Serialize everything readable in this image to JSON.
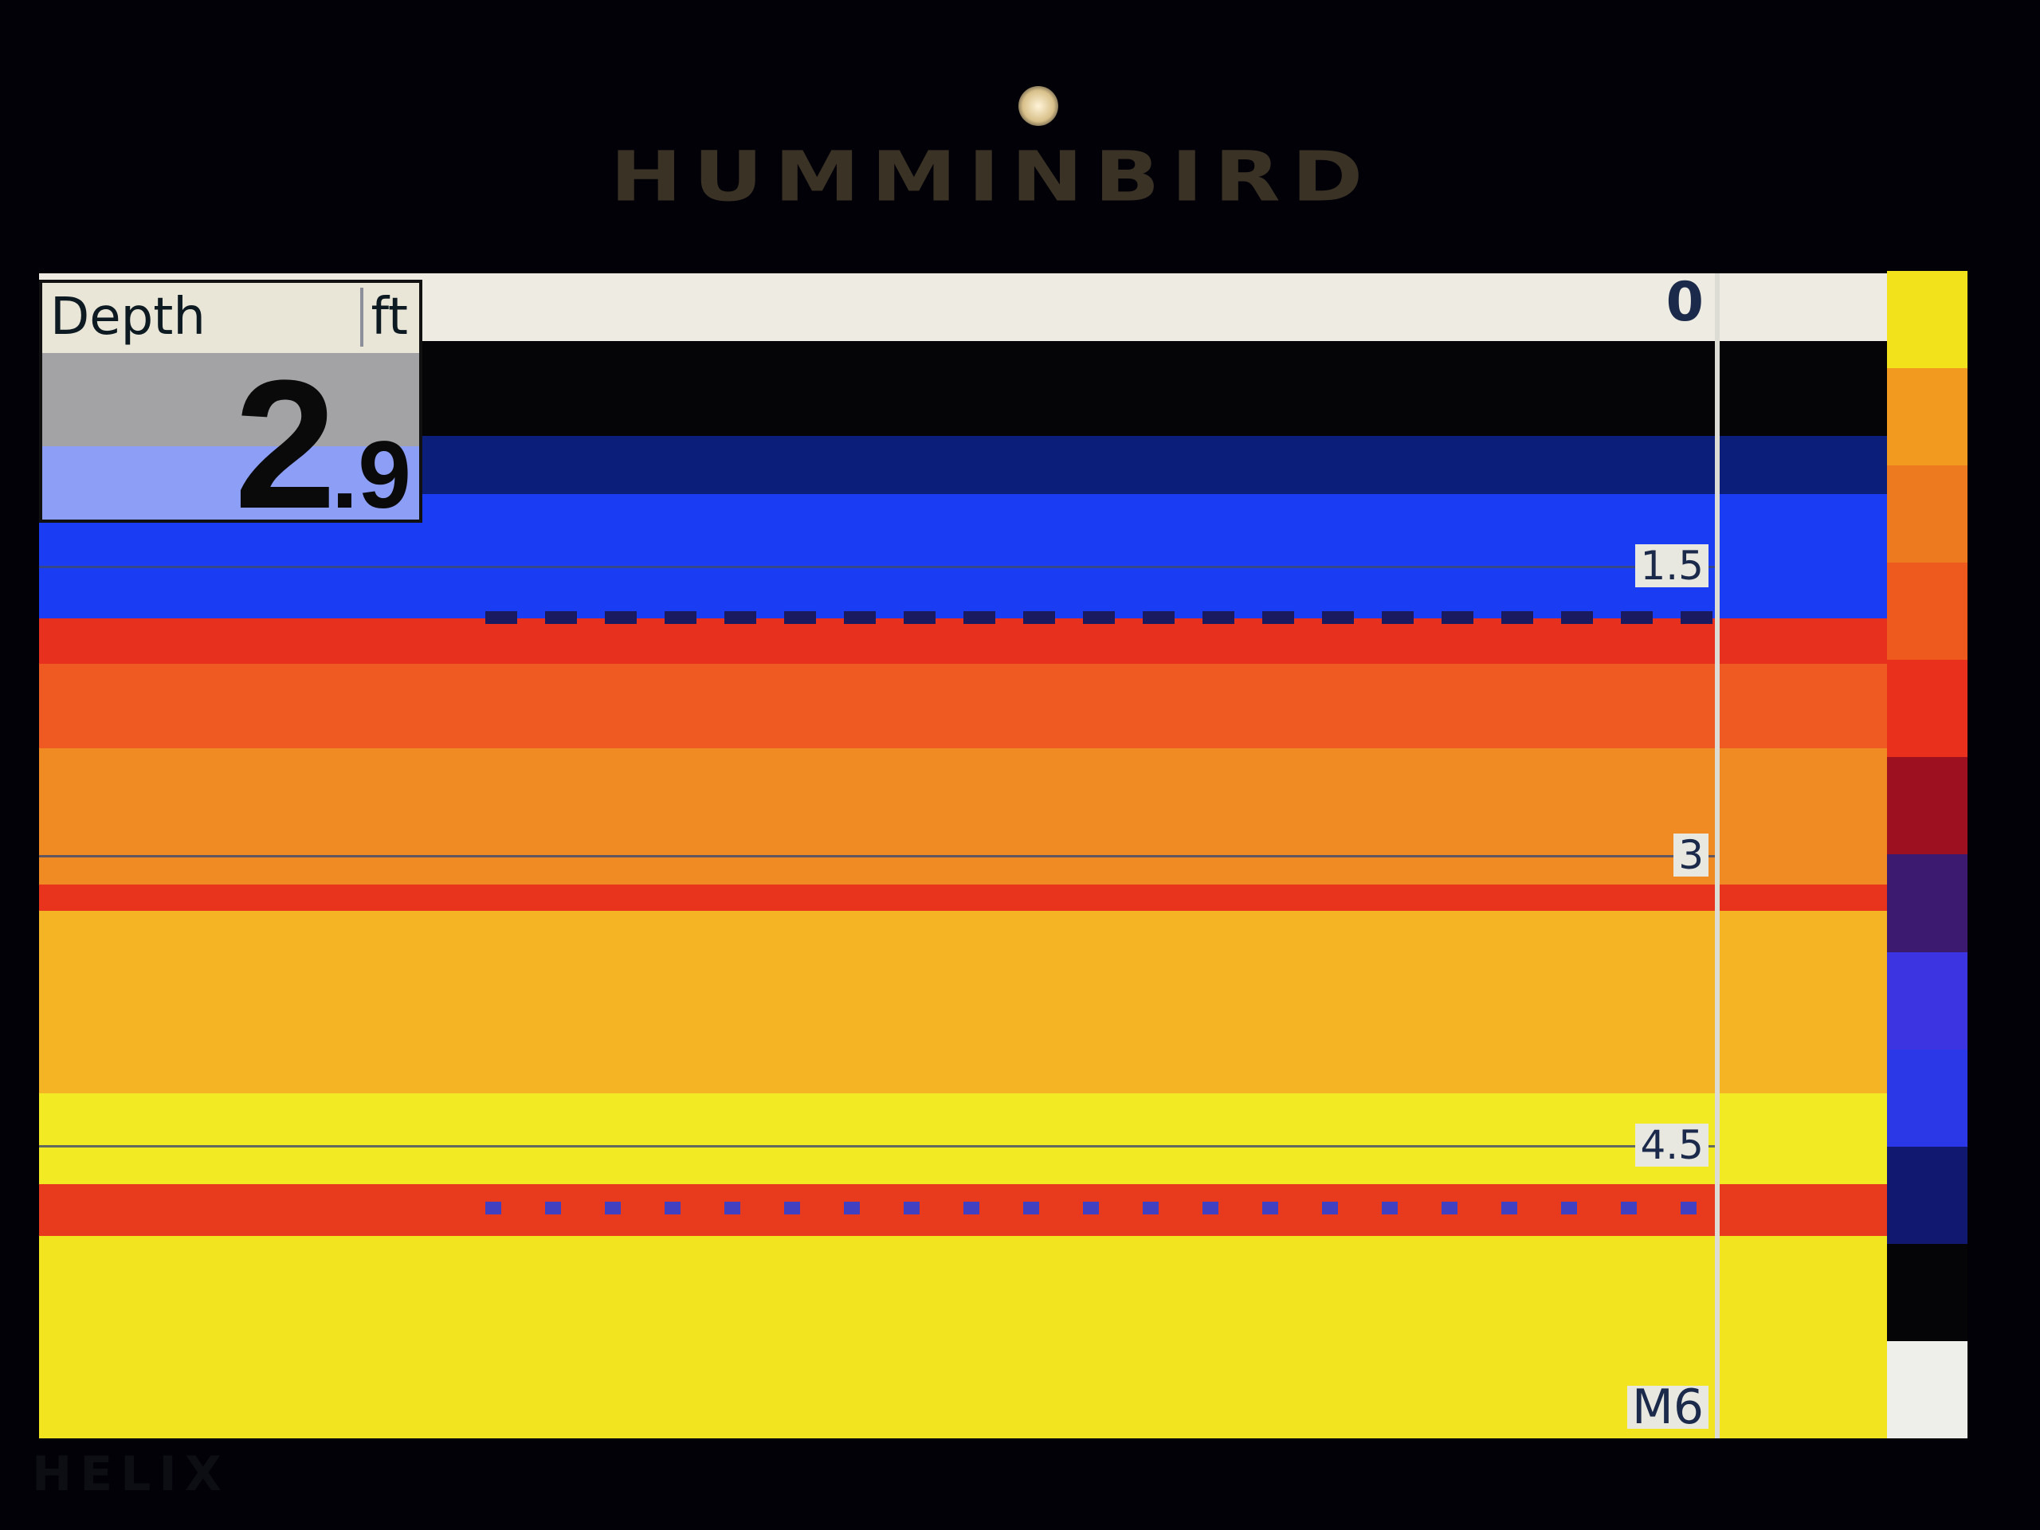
{
  "device": {
    "brand": "HUMMINBIRD",
    "model": "HELIX"
  },
  "depth_readout": {
    "label": "Depth",
    "unit": "ft",
    "integer": "2",
    "decimal": ".9",
    "value": 2.9
  },
  "depth_scale": {
    "labels": [
      "0",
      "1.5",
      "3",
      "4.5",
      "M6"
    ],
    "min": 0,
    "max": 6,
    "unit": "ft"
  },
  "colors": {
    "water_bands": [
      "#050508",
      "#0b1f7a",
      "#1a3cf2",
      "#e8301e",
      "#ee5a22",
      "#f08a22",
      "#e8341c",
      "#f4b424",
      "#f2ea22",
      "#e83a1c",
      "#f2e41e"
    ],
    "palette_bar": [
      "#f2e21c",
      "#f29a20",
      "#ee7a20",
      "#ee5a1e",
      "#e8301c",
      "#9c1020",
      "#3c1a70",
      "#3c34e0",
      "#2a38e8",
      "#101870",
      "#050508",
      "#eeeeea"
    ]
  }
}
